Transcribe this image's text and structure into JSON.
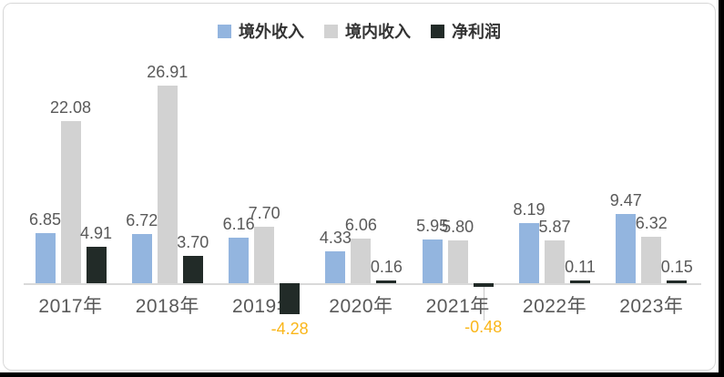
{
  "chart_data": {
    "type": "bar",
    "title": "",
    "xlabel": "",
    "ylabel": "",
    "categories": [
      "2017年",
      "2018年",
      "2019年",
      "2020年",
      "2021年",
      "2022年",
      "2023年"
    ],
    "series": [
      {
        "name": "境外收入",
        "color": "#93B5DF",
        "values": [
          6.85,
          6.72,
          6.16,
          4.33,
          5.95,
          8.19,
          9.47
        ],
        "labels": [
          "6.85",
          "6.72",
          "6.16",
          "4.33",
          "5.95",
          "8.19",
          "9.47"
        ]
      },
      {
        "name": "境内收入",
        "color": "#D2D2D2",
        "values": [
          22.08,
          26.91,
          7.7,
          6.06,
          5.8,
          5.87,
          6.32
        ],
        "labels": [
          "22.08",
          "26.91",
          "7.70",
          "6.06",
          "5.80",
          "5.87",
          "6.32"
        ]
      },
      {
        "name": "净利润",
        "color": "#222B28",
        "values": [
          4.91,
          3.7,
          -4.28,
          0.16,
          -0.48,
          0.11,
          0.15
        ],
        "labels": [
          "4.91",
          "3.70",
          "-4.28",
          "0.16",
          "-0.48",
          "0.11",
          "0.15"
        ]
      }
    ],
    "ylim": [
      -5,
      28
    ],
    "grid": false,
    "legend_position": "top",
    "data_labels": true,
    "colors": {
      "value_label": "#595959",
      "negative_value_label": "#FAB619",
      "tick_label": "#595959",
      "legend_text": "#333333",
      "axis_line": "#D9D9D9",
      "leader_line": "#C9C9C9",
      "card_background": "#FFFFFF",
      "card_border": "#D8D8D8",
      "screen_edge": "#000000"
    }
  }
}
